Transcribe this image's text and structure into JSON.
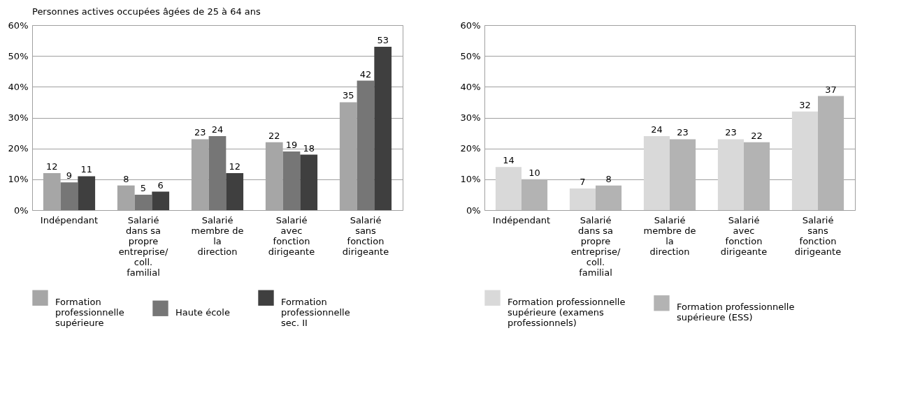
{
  "chart_data": [
    {
      "type": "bar",
      "title": "Personnes actives occupées âgées de 25 à 64 ans",
      "categories": [
        "Indépendant",
        "Salarié dans sa propre entreprise/ coll. familial",
        "Salarié membre de la direction",
        "Salarié avec fonction dirigeante",
        "Salarié sans fonction dirigeante"
      ],
      "series": [
        {
          "name": "Formation professionnelle supérieure",
          "color": "#a6a6a6",
          "values": [
            12,
            8,
            23,
            22,
            35
          ]
        },
        {
          "name": "Haute école",
          "color": "#767676",
          "values": [
            9,
            5,
            24,
            19,
            42
          ]
        },
        {
          "name": "Formation professionnelle sec. II",
          "color": "#3f3f3f",
          "values": [
            11,
            6,
            12,
            18,
            53
          ]
        }
      ],
      "ylim": [
        0,
        60
      ],
      "yticks": [
        {
          "value": 0,
          "label": "0%"
        },
        {
          "value": 10,
          "label": "10%"
        },
        {
          "value": 20,
          "label": "20%"
        },
        {
          "value": 30,
          "label": "30%"
        },
        {
          "value": 40,
          "label": "40%"
        },
        {
          "value": 50,
          "label": "50%"
        },
        {
          "value": 60,
          "label": "60%"
        }
      ],
      "grid": "y",
      "legend": "bottom",
      "data_labels": true
    },
    {
      "type": "bar",
      "categories": [
        "Indépendant",
        "Salarié dans sa propre entreprise/ coll. familial",
        "Salarié membre de la direction",
        "Salarié avec fonction dirigeante",
        "Salarié sans fonction dirigeante"
      ],
      "series": [
        {
          "name": "Formation professionnelle supérieure (examens professionnels)",
          "color": "#d9d9d9",
          "values": [
            14,
            7,
            24,
            23,
            32
          ]
        },
        {
          "name": "Formation professionnelle supérieure (ESS)",
          "color": "#b3b3b3",
          "values": [
            10,
            8,
            23,
            22,
            37
          ]
        }
      ],
      "ylim": [
        0,
        60
      ],
      "yticks": [
        {
          "value": 0,
          "label": "0%"
        },
        {
          "value": 10,
          "label": "10%"
        },
        {
          "value": 20,
          "label": "20%"
        },
        {
          "value": 30,
          "label": "30%"
        },
        {
          "value": 40,
          "label": "40%"
        },
        {
          "value": 50,
          "label": "50%"
        },
        {
          "value": 60,
          "label": "60%"
        }
      ],
      "grid": "y",
      "legend": "bottom",
      "data_labels": true
    }
  ]
}
